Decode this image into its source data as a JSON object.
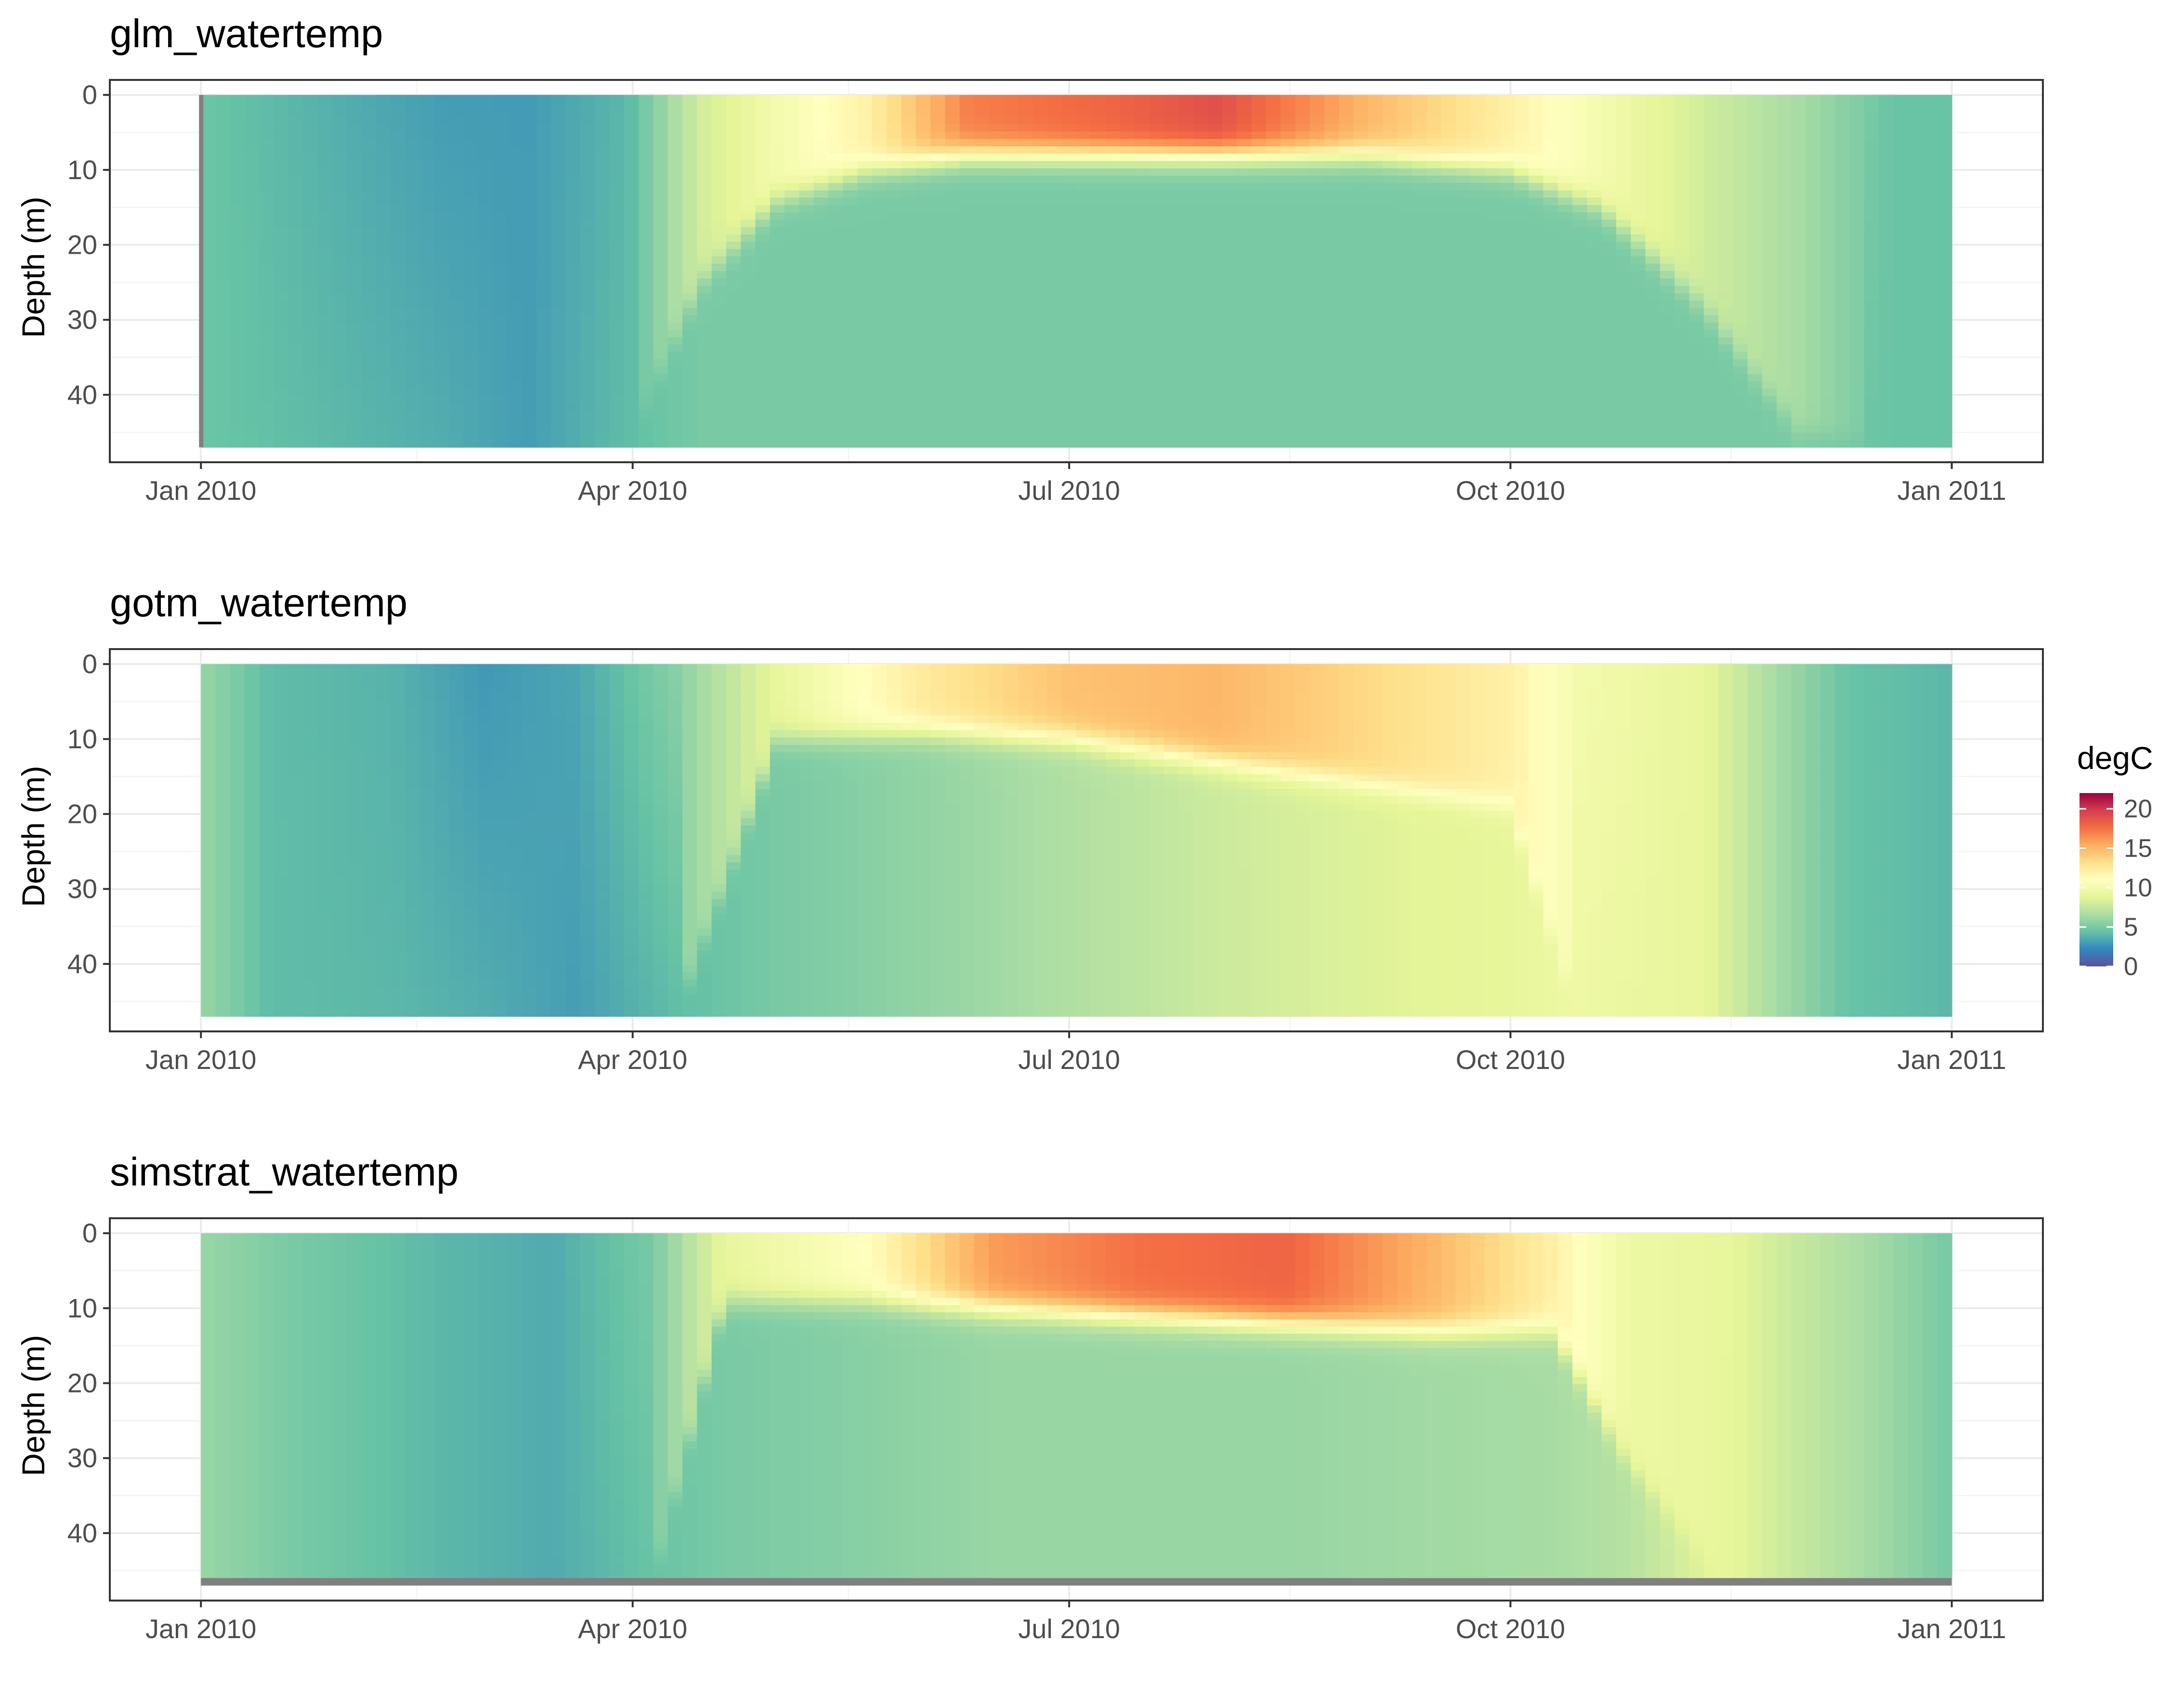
{
  "colors": {
    "palette": [
      "#5E4FA2",
      "#3288BD",
      "#66C2A5",
      "#ABDDA4",
      "#E6F598",
      "#FFFFBF",
      "#FEE08B",
      "#FDAE61",
      "#F46D43",
      "#D53E4F",
      "#9E0142"
    ],
    "missing_bar": "#808080",
    "panel_border": "#333333",
    "grid_major": "#ebebeb",
    "grid_minor": "#f5f5f5"
  },
  "legend": {
    "title": "degC",
    "breaks": [
      0,
      5,
      10,
      15,
      20
    ],
    "labels": [
      "0",
      "5",
      "10",
      "15",
      "20"
    ],
    "range": [
      0,
      22
    ]
  },
  "chart_data": [
    {
      "type": "heatmap",
      "title": "glm_watertemp",
      "xlabel": "",
      "ylabel": "Depth (m)",
      "x_ticks": [
        "Jan 2010",
        "Apr 2010",
        "Jul 2010",
        "Oct 2010",
        "Jan 2011"
      ],
      "y_ticks": [
        "0",
        "10",
        "20",
        "30",
        "40"
      ],
      "xlim": [
        "2009-12-13",
        "2011-01-20"
      ],
      "ylim": [
        49,
        -2
      ],
      "y_reversed": true,
      "depth_range": [
        0,
        47
      ],
      "date_range": [
        "2010-01-01",
        "2010-12-31"
      ],
      "missing_bar": "first-day",
      "profiles": [
        {
          "date": "2010-01-01",
          "surface_temp": 4.6,
          "bottom_temp": 4.6,
          "thermocline_m": 47
        },
        {
          "date": "2010-01-31",
          "surface_temp": 3.6,
          "bottom_temp": 4.0,
          "thermocline_m": 47
        },
        {
          "date": "2010-02-20",
          "surface_temp": 3.0,
          "bottom_temp": 3.6,
          "thermocline_m": 47
        },
        {
          "date": "2010-03-10",
          "surface_temp": 2.9,
          "bottom_temp": 3.0,
          "thermocline_m": 47
        },
        {
          "date": "2010-03-31",
          "surface_temp": 4.0,
          "bottom_temp": 4.2,
          "thermocline_m": 47
        },
        {
          "date": "2010-04-15",
          "surface_temp": 8.0,
          "bottom_temp": 5.0,
          "thermocline_m": 25
        },
        {
          "date": "2010-05-01",
          "surface_temp": 10.0,
          "bottom_temp": 5.0,
          "thermocline_m": 14
        },
        {
          "date": "2010-05-20",
          "surface_temp": 12.0,
          "bottom_temp": 5.0,
          "thermocline_m": 10
        },
        {
          "date": "2010-06-10",
          "surface_temp": 17.0,
          "bottom_temp": 5.0,
          "thermocline_m": 8
        },
        {
          "date": "2010-07-10",
          "surface_temp": 18.0,
          "bottom_temp": 5.0,
          "thermocline_m": 8
        },
        {
          "date": "2010-08-01",
          "surface_temp": 19.0,
          "bottom_temp": 5.0,
          "thermocline_m": 8
        },
        {
          "date": "2010-09-01",
          "surface_temp": 15.0,
          "bottom_temp": 5.0,
          "thermocline_m": 8
        },
        {
          "date": "2010-10-01",
          "surface_temp": 12.0,
          "bottom_temp": 5.0,
          "thermocline_m": 10
        },
        {
          "date": "2010-10-20",
          "surface_temp": 10.0,
          "bottom_temp": 5.0,
          "thermocline_m": 15
        },
        {
          "date": "2010-11-10",
          "surface_temp": 8.0,
          "bottom_temp": 5.0,
          "thermocline_m": 28
        },
        {
          "date": "2010-11-30",
          "surface_temp": 6.5,
          "bottom_temp": 5.0,
          "thermocline_m": 45
        },
        {
          "date": "2010-12-20",
          "surface_temp": 4.5,
          "bottom_temp": 4.5,
          "thermocline_m": 47
        },
        {
          "date": "2010-12-31",
          "surface_temp": 4.5,
          "bottom_temp": 4.5,
          "thermocline_m": 47
        }
      ]
    },
    {
      "type": "heatmap",
      "title": "gotm_watertemp",
      "xlabel": "",
      "ylabel": "Depth (m)",
      "x_ticks": [
        "Jan 2010",
        "Apr 2010",
        "Jul 2010",
        "Oct 2010",
        "Jan 2011"
      ],
      "y_ticks": [
        "0",
        "10",
        "20",
        "30",
        "40"
      ],
      "xlim": [
        "2009-12-13",
        "2011-01-20"
      ],
      "ylim": [
        49,
        -2
      ],
      "y_reversed": true,
      "depth_range": [
        0,
        47
      ],
      "date_range": [
        "2010-01-01",
        "2010-12-31"
      ],
      "missing_bar": "none",
      "profiles": [
        {
          "date": "2010-01-01",
          "surface_temp": 6.0,
          "bottom_temp": 6.0,
          "thermocline_m": 47
        },
        {
          "date": "2010-01-15",
          "surface_temp": 4.2,
          "bottom_temp": 4.2,
          "thermocline_m": 47
        },
        {
          "date": "2010-02-10",
          "surface_temp": 3.8,
          "bottom_temp": 4.0,
          "thermocline_m": 47
        },
        {
          "date": "2010-03-01",
          "surface_temp": 2.8,
          "bottom_temp": 3.6,
          "thermocline_m": 47
        },
        {
          "date": "2010-03-20",
          "surface_temp": 3.3,
          "bottom_temp": 3.0,
          "thermocline_m": 47
        },
        {
          "date": "2010-04-10",
          "surface_temp": 5.5,
          "bottom_temp": 4.2,
          "thermocline_m": 47
        },
        {
          "date": "2010-05-01",
          "surface_temp": 9.0,
          "bottom_temp": 5.0,
          "thermocline_m": 10
        },
        {
          "date": "2010-06-01",
          "surface_temp": 12.5,
          "bottom_temp": 5.8,
          "thermocline_m": 9
        },
        {
          "date": "2010-07-01",
          "surface_temp": 14.5,
          "bottom_temp": 6.8,
          "thermocline_m": 10
        },
        {
          "date": "2010-08-01",
          "surface_temp": 15.0,
          "bottom_temp": 7.8,
          "thermocline_m": 13
        },
        {
          "date": "2010-09-01",
          "surface_temp": 13.5,
          "bottom_temp": 8.5,
          "thermocline_m": 16
        },
        {
          "date": "2010-10-01",
          "surface_temp": 12.0,
          "bottom_temp": 9.0,
          "thermocline_m": 19
        },
        {
          "date": "2010-10-15",
          "surface_temp": 10.0,
          "bottom_temp": 9.5,
          "thermocline_m": 47
        },
        {
          "date": "2010-11-10",
          "surface_temp": 9.0,
          "bottom_temp": 9.0,
          "thermocline_m": 47
        },
        {
          "date": "2010-11-25",
          "surface_temp": 6.5,
          "bottom_temp": 6.5,
          "thermocline_m": 47
        },
        {
          "date": "2010-12-10",
          "surface_temp": 4.5,
          "bottom_temp": 4.5,
          "thermocline_m": 47
        },
        {
          "date": "2010-12-31",
          "surface_temp": 4.0,
          "bottom_temp": 4.0,
          "thermocline_m": 47
        }
      ]
    },
    {
      "type": "heatmap",
      "title": "simstrat_watertemp",
      "xlabel": "",
      "ylabel": "Depth (m)",
      "x_ticks": [
        "Jan 2010",
        "Apr 2010",
        "Jul 2010",
        "Oct 2010",
        "Jan 2011"
      ],
      "y_ticks": [
        "0",
        "10",
        "20",
        "30",
        "40"
      ],
      "xlim": [
        "2009-12-13",
        "2011-01-20"
      ],
      "ylim": [
        49,
        -2
      ],
      "y_reversed": true,
      "depth_range": [
        0,
        46
      ],
      "date_range": [
        "2010-01-01",
        "2010-12-31"
      ],
      "missing_bar": "bottom-layer",
      "profiles": [
        {
          "date": "2010-01-01",
          "surface_temp": 6.0,
          "bottom_temp": 6.0,
          "thermocline_m": 47
        },
        {
          "date": "2010-01-20",
          "surface_temp": 5.0,
          "bottom_temp": 5.0,
          "thermocline_m": 47
        },
        {
          "date": "2010-02-20",
          "surface_temp": 4.0,
          "bottom_temp": 4.0,
          "thermocline_m": 47
        },
        {
          "date": "2010-03-15",
          "surface_temp": 3.5,
          "bottom_temp": 3.5,
          "thermocline_m": 47
        },
        {
          "date": "2010-04-05",
          "surface_temp": 5.0,
          "bottom_temp": 4.5,
          "thermocline_m": 47
        },
        {
          "date": "2010-04-20",
          "surface_temp": 9.0,
          "bottom_temp": 5.0,
          "thermocline_m": 9
        },
        {
          "date": "2010-05-20",
          "surface_temp": 11.0,
          "bottom_temp": 5.5,
          "thermocline_m": 9
        },
        {
          "date": "2010-06-15",
          "surface_temp": 16.0,
          "bottom_temp": 6.0,
          "thermocline_m": 10
        },
        {
          "date": "2010-07-15",
          "surface_temp": 17.5,
          "bottom_temp": 6.0,
          "thermocline_m": 11
        },
        {
          "date": "2010-08-15",
          "surface_temp": 18.0,
          "bottom_temp": 6.0,
          "thermocline_m": 12
        },
        {
          "date": "2010-09-15",
          "surface_temp": 15.0,
          "bottom_temp": 6.3,
          "thermocline_m": 13
        },
        {
          "date": "2010-10-10",
          "surface_temp": 12.0,
          "bottom_temp": 6.5,
          "thermocline_m": 13
        },
        {
          "date": "2010-10-25",
          "surface_temp": 9.5,
          "bottom_temp": 7.0,
          "thermocline_m": 30
        },
        {
          "date": "2010-11-15",
          "surface_temp": 9.0,
          "bottom_temp": 9.0,
          "thermocline_m": 47
        },
        {
          "date": "2010-12-01",
          "surface_temp": 7.5,
          "bottom_temp": 7.5,
          "thermocline_m": 47
        },
        {
          "date": "2010-12-20",
          "surface_temp": 6.0,
          "bottom_temp": 6.0,
          "thermocline_m": 47
        },
        {
          "date": "2010-12-31",
          "surface_temp": 5.0,
          "bottom_temp": 5.0,
          "thermocline_m": 47
        }
      ]
    }
  ]
}
